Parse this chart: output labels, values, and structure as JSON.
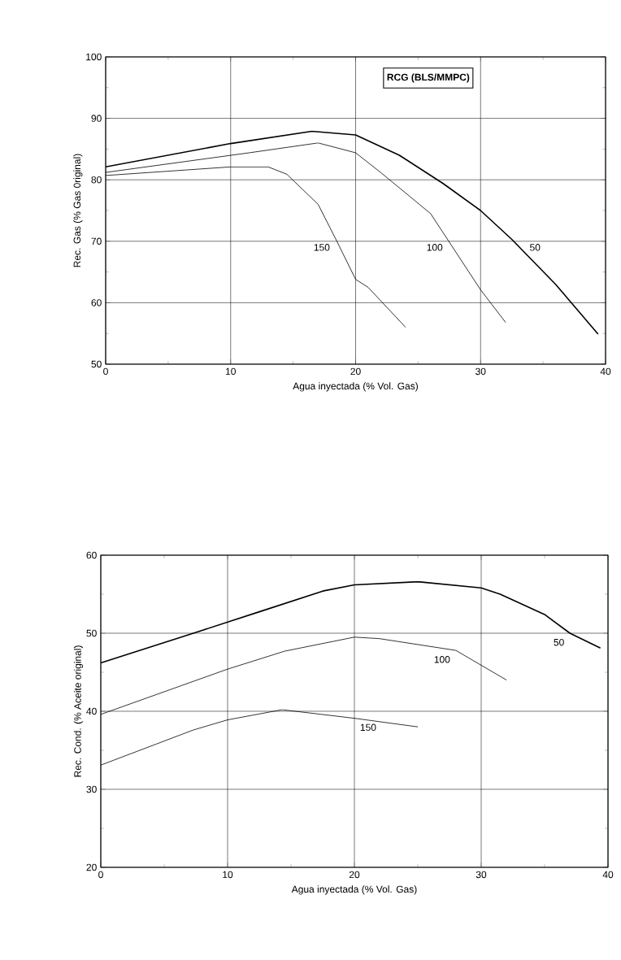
{
  "chart_data": [
    {
      "type": "line",
      "xlabel": "Agua inyectada (% Vol. Gas)",
      "ylabel": "Rec. Gas (% Gas 0riginal)",
      "legend_title": "RCG (BLS/MMPC)",
      "xlim": [
        0,
        40
      ],
      "ylim": [
        50,
        100
      ],
      "xticks": [
        0,
        10,
        20,
        30,
        40
      ],
      "yticks": [
        50,
        60,
        70,
        80,
        90,
        100
      ],
      "grid": true,
      "series": [
        {
          "name": "50",
          "color": "#000000",
          "x": [
            0,
            10,
            16.5,
            20,
            23.5,
            27,
            30,
            32.5,
            36,
            39.4
          ],
          "values": [
            82.1,
            85.9,
            87.9,
            87.3,
            84,
            79.4,
            75,
            70.3,
            63,
            54.9
          ]
        },
        {
          "name": "100",
          "color": "#000000",
          "x": [
            0,
            11.5,
            17,
            20,
            22,
            26,
            30,
            32
          ],
          "values": [
            81.2,
            84.4,
            86,
            84.4,
            81.2,
            74.5,
            62.1,
            56.8
          ]
        },
        {
          "name": "150",
          "color": "#000000",
          "x": [
            0,
            10,
            13,
            14.5,
            17,
            18.5,
            20,
            21,
            24
          ],
          "values": [
            80.7,
            82.1,
            82.1,
            80.9,
            76,
            70,
            63.8,
            62.5,
            56
          ]
        }
      ]
    },
    {
      "type": "line",
      "xlabel": "Agua inyectada (% Vol. Gas)",
      "ylabel": "Rec. Cond. (% Aceite original)",
      "xlim": [
        0,
        40
      ],
      "ylim": [
        20,
        60
      ],
      "xticks": [
        0,
        10,
        20,
        30,
        40
      ],
      "yticks": [
        20,
        30,
        40,
        50,
        60
      ],
      "grid": true,
      "series": [
        {
          "name": "50",
          "color": "#000000",
          "x": [
            0,
            7.3,
            12.6,
            17.5,
            20,
            25,
            30,
            31.5,
            35,
            37,
            39.4
          ],
          "values": [
            46.2,
            50,
            52.8,
            55.4,
            56.2,
            56.6,
            55.8,
            55,
            52.4,
            50,
            48.1
          ]
        },
        {
          "name": "100",
          "color": "#000000",
          "x": [
            0,
            10,
            14.5,
            20,
            22,
            28,
            32
          ],
          "values": [
            39.6,
            45.4,
            47.7,
            49.5,
            49.3,
            47.8,
            44
          ]
        },
        {
          "name": "150",
          "color": "#000000",
          "x": [
            0,
            7.3,
            10,
            14.3,
            20,
            25
          ],
          "values": [
            33.1,
            37.6,
            38.9,
            40.2,
            39.1,
            38
          ]
        }
      ]
    }
  ]
}
